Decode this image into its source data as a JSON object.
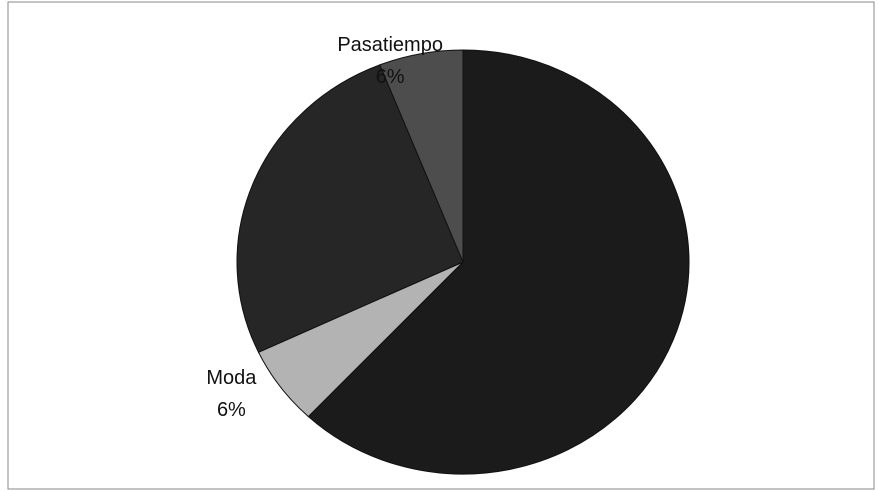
{
  "chart_data": {
    "type": "pie",
    "categories": [
      null,
      "Moda",
      null,
      "Pasatiempo"
    ],
    "values": [
      62,
      6,
      26,
      6
    ],
    "value_labels": [
      null,
      "6%",
      null,
      "6%"
    ],
    "colors": [
      "#1b1b1b",
      "#b3b3b3",
      "#262626",
      "#4d4d4d"
    ]
  }
}
